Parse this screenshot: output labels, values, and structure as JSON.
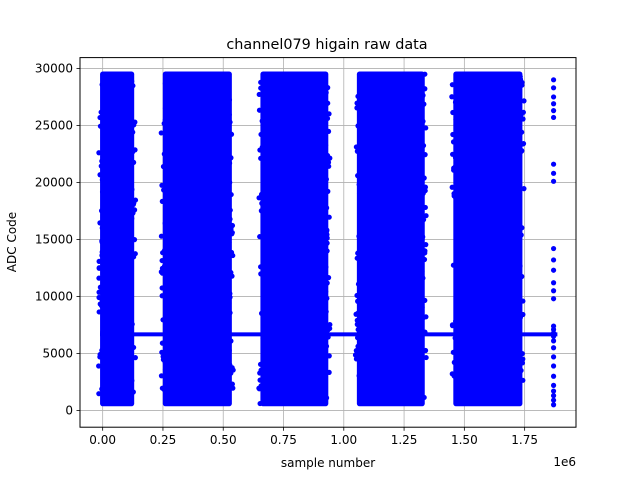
{
  "chart_data": {
    "type": "scatter",
    "title": "channel079 higain raw data",
    "xlabel": "sample number",
    "ylabel": "ADC Code",
    "x_offset_label": "1e6",
    "x_scale": 1000000,
    "xlim": [
      -0.094,
      1.963
    ],
    "ylim": [
      -1470,
      30950
    ],
    "xticks": [
      0.0,
      0.25,
      0.5,
      0.75,
      1.0,
      1.25,
      1.5,
      1.75
    ],
    "xtick_labels": [
      "0.00",
      "0.25",
      "0.50",
      "0.75",
      "1.00",
      "1.25",
      "1.50",
      "1.75"
    ],
    "yticks": [
      0,
      5000,
      10000,
      15000,
      20000,
      25000,
      30000
    ],
    "ytick_labels": [
      "0",
      "5000",
      "10000",
      "15000",
      "20000",
      "25000",
      "30000"
    ],
    "grid": true,
    "marker_color": "#0000ff",
    "series": [
      {
        "bursts": [
          {
            "x_start": 0.0,
            "x_end": 0.12,
            "y_min": 600,
            "y_max": 29500
          },
          {
            "x_start": 0.26,
            "x_end": 0.525,
            "y_min": 600,
            "y_max": 29500
          },
          {
            "x_start": 0.665,
            "x_end": 0.925,
            "y_min": 600,
            "y_max": 29500
          },
          {
            "x_start": 1.065,
            "x_end": 1.325,
            "y_min": 600,
            "y_max": 29500
          },
          {
            "x_start": 1.465,
            "x_end": 1.73,
            "y_min": 600,
            "y_max": 29500
          }
        ],
        "baseline": {
          "x_start": 0.0,
          "x_end": 1.875,
          "y_min": 6500,
          "y_max": 6850
        },
        "tail": {
          "x": 1.87,
          "y_values": [
            500,
            900,
            1300,
            1700,
            2200,
            3000,
            3900,
            4700,
            5500,
            6100,
            6500,
            6800,
            7100,
            7400,
            9800,
            10500,
            11200,
            12300,
            13200,
            14200,
            20100,
            20800,
            21600,
            25700,
            26300,
            26900,
            27500,
            28300,
            29000
          ]
        }
      }
    ]
  }
}
